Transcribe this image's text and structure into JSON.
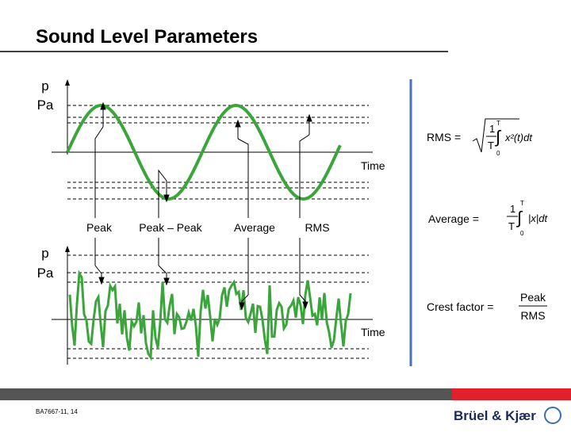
{
  "header": {
    "title": "Sound Level Parameters"
  },
  "upper_plot": {
    "y_label": "p",
    "y_unit": "Pa",
    "x_label": "Time",
    "markers": [
      "Peak",
      "Peak – Peak",
      "Average",
      "RMS"
    ]
  },
  "lower_plot": {
    "y_label": "p",
    "y_unit": "Pa",
    "x_label": "Time"
  },
  "formulas": {
    "rms": {
      "label": "RMS =",
      "numerator": "1",
      "denominator": "T",
      "upper": "T",
      "lower": "0",
      "integrand": "x²(t)dt"
    },
    "average": {
      "label": "Average =",
      "numerator": "1",
      "denominator": "T",
      "upper": "T",
      "lower": "0",
      "integrand": "|x|dt"
    },
    "crest_factor": {
      "label": "Crest factor =",
      "numerator": "Peak",
      "denominator": "RMS"
    }
  },
  "footer": {
    "code": "BA7667-11, 14",
    "logo": "Brüel & Kjær"
  }
}
